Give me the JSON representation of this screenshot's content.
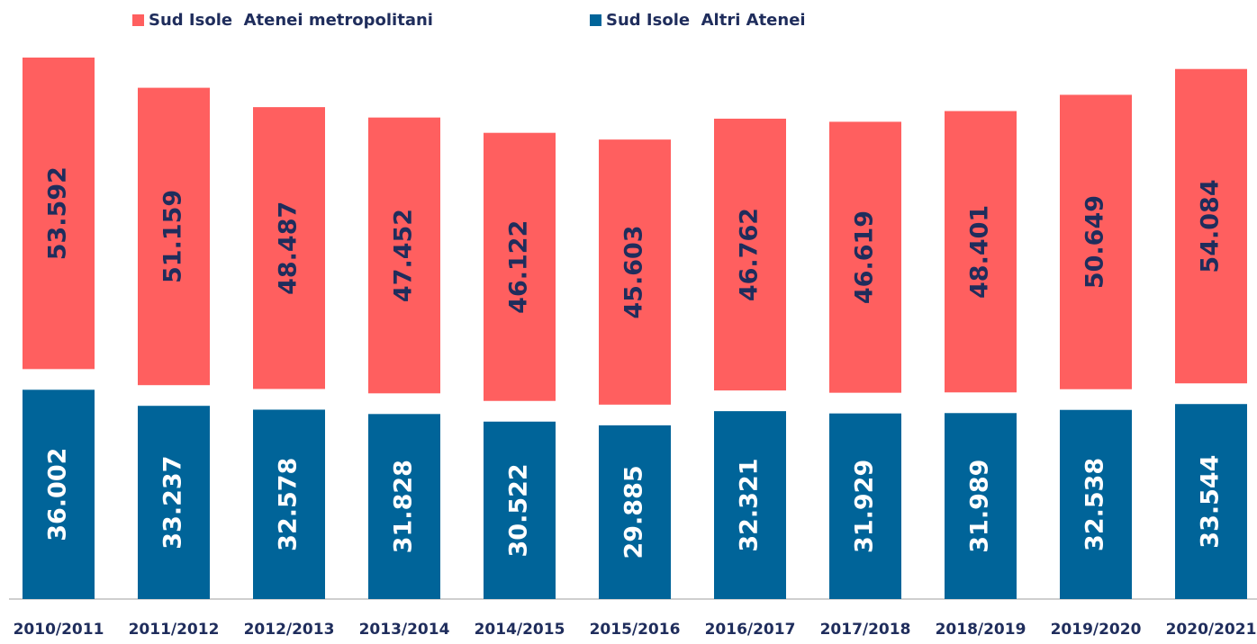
{
  "chart_data": {
    "type": "bar",
    "stacked": true,
    "categories": [
      "2010/2011",
      "2011/2012",
      "2012/2013",
      "2013/2014",
      "2014/2015",
      "2015/2016",
      "2016/2017",
      "2017/2018",
      "2018/2019",
      "2019/2020",
      "2020/2021"
    ],
    "series": [
      {
        "name": "Sud Isole  Atenei metropolitani",
        "color": "#ff5f5f",
        "values": [
          53592,
          51159,
          48487,
          47452,
          46122,
          45603,
          46762,
          46619,
          48401,
          50649,
          54084
        ],
        "value_labels": [
          "53.592",
          "51.159",
          "48.487",
          "47.452",
          "46.122",
          "45.603",
          "46.762",
          "46.619",
          "48.401",
          "50.649",
          "54.084"
        ]
      },
      {
        "name": "Sud Isole  Altri Atenei",
        "color": "#006499",
        "values": [
          36002,
          33237,
          32578,
          31828,
          30522,
          29885,
          32321,
          31929,
          31989,
          32538,
          33544
        ],
        "value_labels": [
          "36.002",
          "33.237",
          "32.578",
          "31.828",
          "30.522",
          "29.885",
          "32.321",
          "31.929",
          "31.989",
          "32.538",
          "33.544"
        ]
      }
    ],
    "legend": "top"
  }
}
